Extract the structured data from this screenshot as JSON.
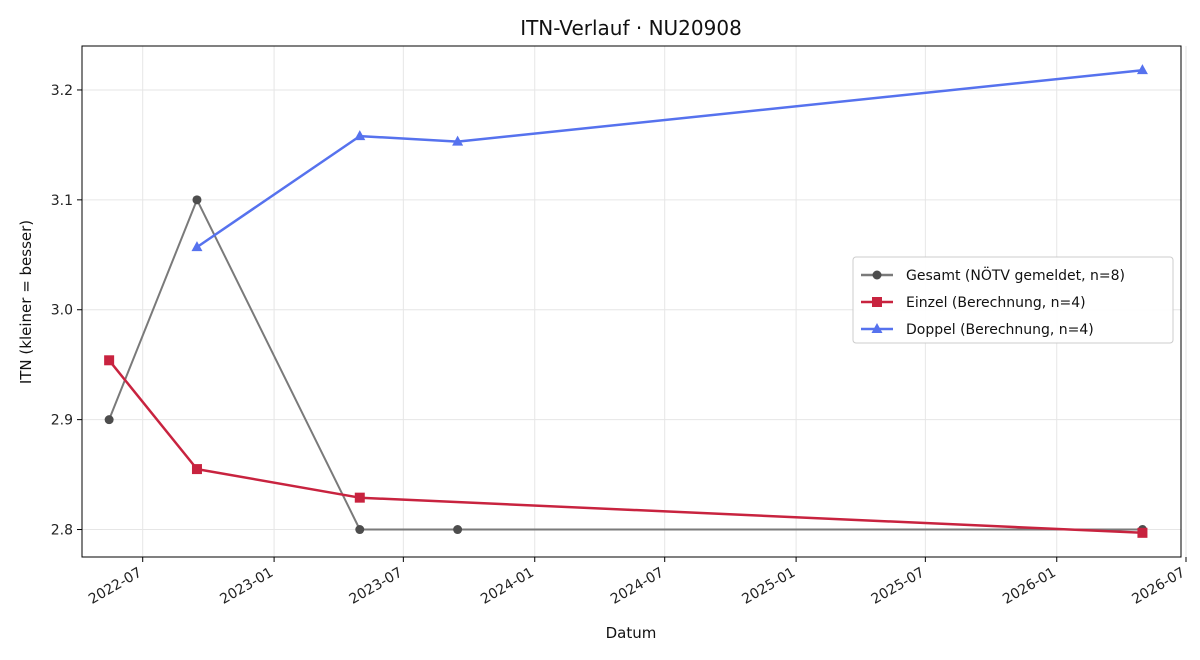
{
  "chart_data": {
    "type": "line",
    "title": "ITN-Verlauf · NU20908",
    "xlabel": "Datum",
    "ylabel": "ITN  (kleiner = besser)",
    "x_type": "date",
    "xlim": [
      "2022-04-07",
      "2026-06-24"
    ],
    "ylim": [
      2.775,
      3.24
    ],
    "x_ticks": [
      "2022-07",
      "2023-01",
      "2023-07",
      "2024-01",
      "2024-07",
      "2025-01",
      "2025-07",
      "2026-01",
      "2026-07"
    ],
    "y_ticks": [
      2.8,
      2.9,
      3.0,
      3.1,
      3.2
    ],
    "grid": true,
    "legend_position": "center-right",
    "series": [
      {
        "name": "Gesamt (NÖTV gemeldet, n=8)",
        "color": "#7a7a7a",
        "marker_color": "#4d4d4d",
        "marker": "circle",
        "points": [
          {
            "x": "2022-05-15",
            "y": 2.9
          },
          {
            "x": "2022-09-15",
            "y": 3.1
          },
          {
            "x": "2023-05-01",
            "y": 2.8
          },
          {
            "x": "2023-09-15",
            "y": 2.8
          },
          {
            "x": "2026-05-01",
            "y": 2.8
          }
        ]
      },
      {
        "name": "Einzel (Berechnung, n=4)",
        "color": "#c8233f",
        "marker_color": "#c8233f",
        "marker": "square",
        "points": [
          {
            "x": "2022-05-15",
            "y": 2.954
          },
          {
            "x": "2022-09-15",
            "y": 2.855
          },
          {
            "x": "2023-05-01",
            "y": 2.829
          },
          {
            "x": "2026-05-01",
            "y": 2.797
          }
        ]
      },
      {
        "name": "Doppel (Berechnung, n=4)",
        "color": "#5672ee",
        "marker_color": "#5672ee",
        "marker": "triangle",
        "points": [
          {
            "x": "2022-09-15",
            "y": 3.057
          },
          {
            "x": "2023-05-01",
            "y": 3.158
          },
          {
            "x": "2023-09-15",
            "y": 3.153
          },
          {
            "x": "2026-05-01",
            "y": 3.218
          }
        ]
      }
    ]
  }
}
